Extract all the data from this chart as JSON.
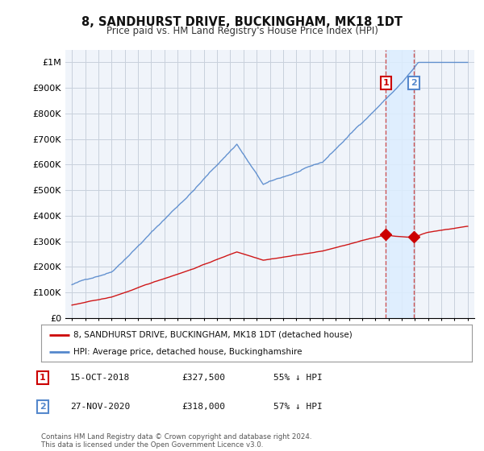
{
  "title": "8, SANDHURST DRIVE, BUCKINGHAM, MK18 1DT",
  "subtitle": "Price paid vs. HM Land Registry's House Price Index (HPI)",
  "ylim": [
    0,
    1050000
  ],
  "yticks": [
    0,
    100000,
    200000,
    300000,
    400000,
    500000,
    600000,
    700000,
    800000,
    900000,
    1000000
  ],
  "ytick_labels": [
    "£0",
    "£100K",
    "£200K",
    "£300K",
    "£400K",
    "£500K",
    "£600K",
    "£700K",
    "£800K",
    "£900K",
    "£1M"
  ],
  "background_color": "#ffffff",
  "plot_bg_color": "#f0f4fa",
  "grid_color": "#c8d0dc",
  "purchase_1": {
    "date_num": 2018.79,
    "price": 327500,
    "label": "1"
  },
  "purchase_2": {
    "date_num": 2020.91,
    "price": 318000,
    "label": "2"
  },
  "legend_entries": [
    {
      "label": "8, SANDHURST DRIVE, BUCKINGHAM, MK18 1DT (detached house)",
      "color": "#cc0000"
    },
    {
      "label": "HPI: Average price, detached house, Buckinghamshire",
      "color": "#5588cc"
    }
  ],
  "table_rows": [
    [
      "1",
      "15-OCT-2018",
      "£327,500",
      "55% ↓ HPI"
    ],
    [
      "2",
      "27-NOV-2020",
      "£318,000",
      "57% ↓ HPI"
    ]
  ],
  "footer": "Contains HM Land Registry data © Crown copyright and database right 2024.\nThis data is licensed under the Open Government Licence v3.0.",
  "hpi_color": "#5588cc",
  "price_color": "#cc0000",
  "shade_color": "#ddeeff",
  "vline_color": "#cc4444",
  "num_box_1_color": "#cc0000",
  "num_box_2_color": "#5588cc"
}
